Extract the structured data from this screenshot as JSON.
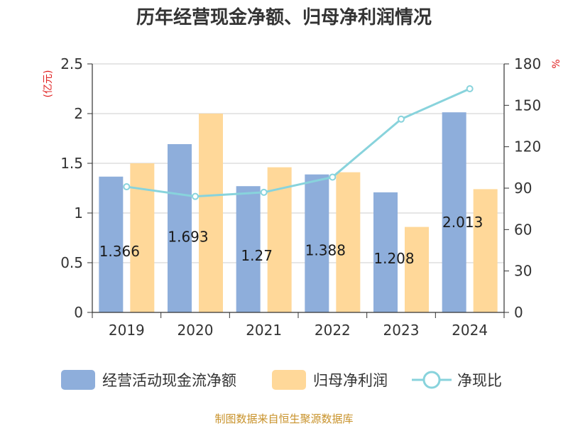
{
  "chart_data": {
    "type": "bar",
    "title": "历年经营现金净额、归母净利润情况",
    "categories": [
      "2019",
      "2020",
      "2021",
      "2022",
      "2023",
      "2024"
    ],
    "y_left": {
      "unit": "(亿元)",
      "ylim": [
        0,
        2.5
      ],
      "ticks": [
        "0",
        "0.5",
        "1",
        "1.5",
        "2",
        "2.5"
      ]
    },
    "y_right": {
      "unit": "%",
      "ylim": [
        0,
        180
      ],
      "ticks": [
        "0",
        "30",
        "60",
        "90",
        "120",
        "150",
        "180"
      ]
    },
    "series": [
      {
        "name": "经营活动现金流净额",
        "type": "bar",
        "axis": "left",
        "color": "#8eaedb",
        "values": [
          1.366,
          1.693,
          1.27,
          1.388,
          1.208,
          2.013
        ],
        "labels": [
          "1.366",
          "1.693",
          "1.27",
          "1.388",
          "1.208",
          "2.013"
        ]
      },
      {
        "name": "归母净利润",
        "type": "bar",
        "axis": "left",
        "color": "#ffd899",
        "values": [
          1.5,
          2.0,
          1.46,
          1.41,
          0.86,
          1.24
        ]
      },
      {
        "name": "净现比",
        "type": "line",
        "axis": "right",
        "color": "#88d3dc",
        "values": [
          91,
          84,
          87,
          98,
          140,
          162
        ]
      }
    ],
    "grid": true,
    "legend": "bottom"
  },
  "source": "制图数据来自恒生聚源数据库"
}
